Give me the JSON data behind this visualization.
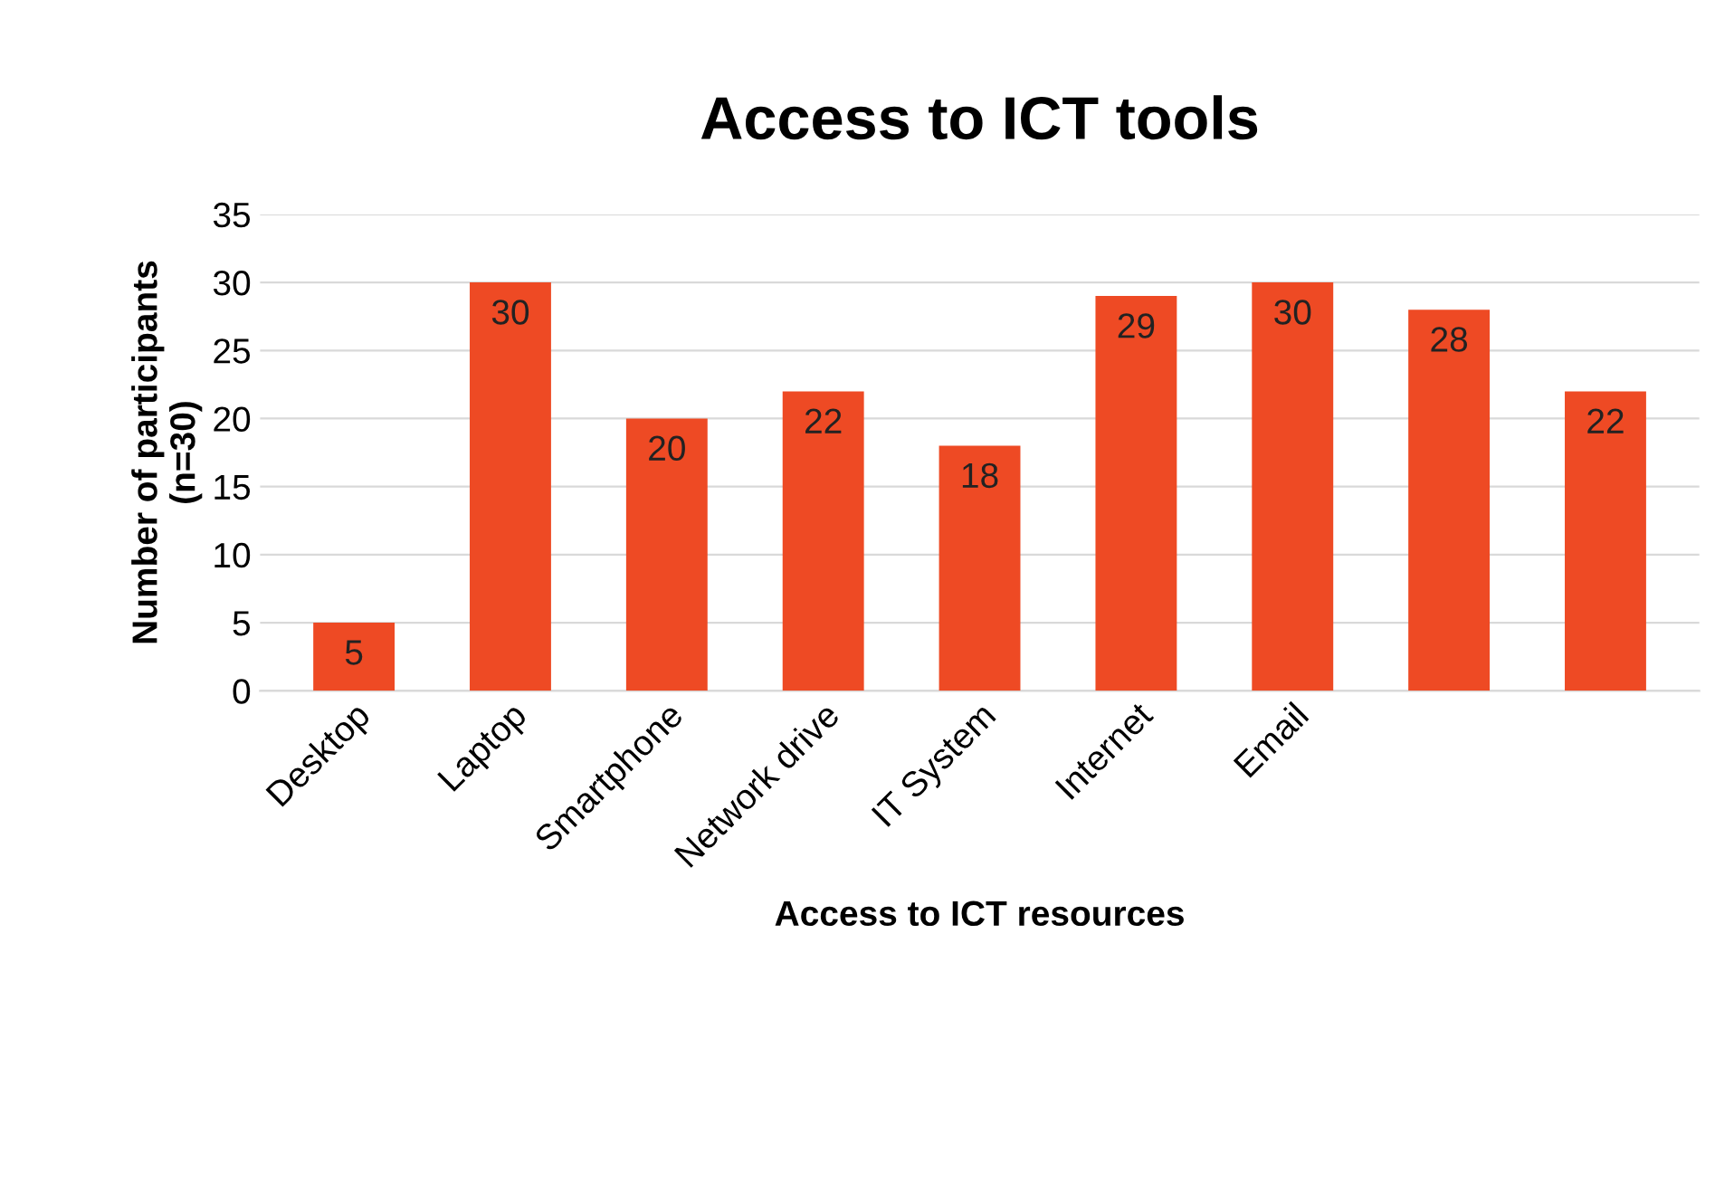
{
  "chart_data": {
    "type": "bar",
    "title": "Access to ICT tools",
    "xlabel": "Access to ICT resources",
    "ylabel": "Number of participants\n(n=30)",
    "categories": [
      "Desktop",
      "Laptop",
      "Smartphone",
      "Network drive",
      "IT System",
      "Internet",
      "Email",
      null,
      null
    ],
    "values": [
      5,
      30,
      20,
      22,
      18,
      29,
      30,
      28,
      22
    ],
    "color": "#ee4a24",
    "ylim": [
      0,
      35
    ],
    "yticks": [
      0,
      5,
      10,
      15,
      20,
      25,
      30,
      35
    ],
    "grid": "y",
    "data_labels": true
  }
}
